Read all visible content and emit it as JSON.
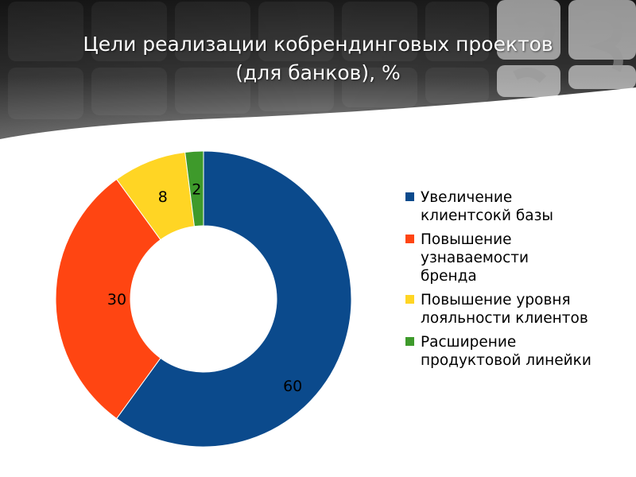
{
  "title": {
    "line1": "Цели реализации кобрендинговых проектов",
    "line2": "(для банков), %"
  },
  "chart_data": {
    "type": "pie",
    "subtype": "doughnut",
    "title": "Цели реализации кобрендинговых проектов (для банков), %",
    "categories": [
      "Увеличение клиентсокй базы",
      "Повышение узнаваемости бренда",
      "Повышение уровня лояльности клиентов",
      "Расширение продуктовой линейки"
    ],
    "values": [
      60,
      30,
      8,
      2
    ],
    "colors": [
      "#0b4a8c",
      "#ff4512",
      "#ffd524",
      "#3e9a2b"
    ],
    "legend_position": "right"
  },
  "legend": {
    "items": [
      {
        "lines": [
          "Увеличение",
          "клиентсокй базы"
        ],
        "color": "#0b4a8c"
      },
      {
        "lines": [
          "Повышение",
          "узнаваемости",
          "бренда"
        ],
        "color": "#ff4512"
      },
      {
        "lines": [
          "Повышение уровня",
          "лояльности клиентов"
        ],
        "color": "#ffd524"
      },
      {
        "lines": [
          "Расширение",
          "продуктовой линейки"
        ],
        "color": "#3e9a2b"
      }
    ]
  }
}
